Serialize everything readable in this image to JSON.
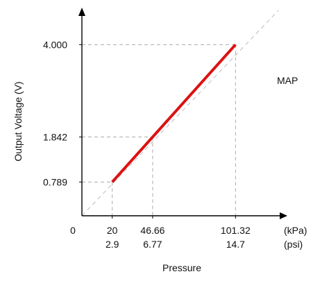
{
  "chart_data": {
    "type": "line",
    "title": "",
    "annotation": "MAP",
    "xlabel": "Pressure",
    "ylabel": "Output Voltage (V)",
    "x_unit_primary": "(kPa)",
    "x_unit_secondary": "(psi)",
    "origin_label": "0",
    "xlim": [
      0,
      130
    ],
    "ylim": [
      0,
      4.8
    ],
    "grid": false,
    "series": [
      {
        "x": [
          20,
          101.32
        ],
        "y": [
          0.789,
          4.0
        ],
        "color": "#dd1111"
      }
    ],
    "reference_line": {
      "style": "dashed",
      "color": "#bbbbbb",
      "x": [
        0,
        129.6
      ],
      "y": [
        0,
        4.8
      ]
    },
    "x_ticks": [
      {
        "value": 20,
        "label": "20",
        "label_secondary": "2.9"
      },
      {
        "value": 46.66,
        "label": "46.66",
        "label_secondary": "6.77"
      },
      {
        "value": 101.32,
        "label": "101.32",
        "label_secondary": "14.7"
      }
    ],
    "y_ticks": [
      {
        "value": 0.789,
        "label": "0.789"
      },
      {
        "value": 1.842,
        "label": "1.842"
      },
      {
        "value": 4.0,
        "label": "4.000"
      }
    ],
    "guide_points": [
      {
        "x": 20,
        "y": 0.789
      },
      {
        "x": 46.66,
        "y": 1.842
      },
      {
        "x": 101.32,
        "y": 4.0
      }
    ]
  }
}
